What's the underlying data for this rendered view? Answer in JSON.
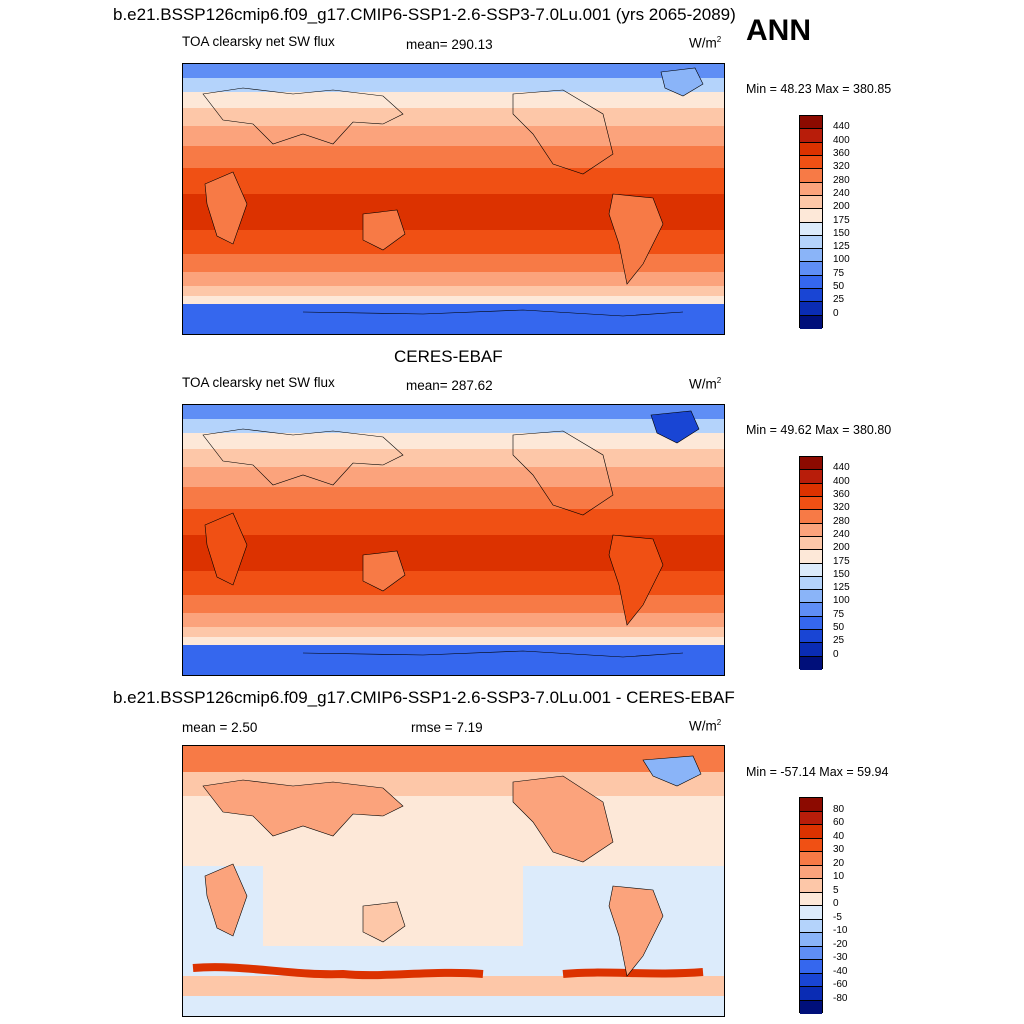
{
  "header": {
    "title": "b.e21.BSSP126cmip6.f09_g17.CMIP6-SSP1-2.6-SSP3-7.0Lu.001 (yrs 2065-2089)",
    "season": "ANN"
  },
  "panels": [
    {
      "id": "model",
      "title": "",
      "left_label": "TOA clearsky net SW flux",
      "center_label": "mean= 290.13",
      "units": "W/m",
      "units_sup": "2",
      "min_max": "Min =  48.23 Max = 380.85"
    },
    {
      "id": "obs",
      "title": "CERES-EBAF",
      "left_label": "TOA clearsky net SW flux",
      "center_label": "mean= 287.62",
      "units": "W/m",
      "units_sup": "2",
      "min_max": "Min =  49.62 Max = 380.80"
    },
    {
      "id": "diff",
      "title": "b.e21.BSSP126cmip6.f09_g17.CMIP6-SSP1-2.6-SSP3-7.0Lu.001 - CERES-EBAF",
      "left_label": "mean =   2.50",
      "center_label": "rmse =   7.19",
      "units": "W/m",
      "units_sup": "2",
      "min_max": "Min = -57.14 Max =  59.94"
    }
  ],
  "colorbars": {
    "flux": {
      "labels": [
        "440",
        "400",
        "360",
        "320",
        "280",
        "240",
        "200",
        "175",
        "150",
        "125",
        "100",
        "75",
        "50",
        "25",
        "0"
      ],
      "colors": [
        "#8c0a00",
        "#b81d0a",
        "#dc3200",
        "#f05014",
        "#f77a46",
        "#fba37c",
        "#fdc7a8",
        "#fde8d8",
        "#dcebfb",
        "#b4d3fb",
        "#8ab4f8",
        "#5f8ef5",
        "#3567ee",
        "#1945d4",
        "#0a2cb4",
        "#000f7a"
      ]
    },
    "diff": {
      "labels": [
        "80",
        "60",
        "40",
        "30",
        "20",
        "10",
        "5",
        "0",
        "-5",
        "-10",
        "-20",
        "-30",
        "-40",
        "-60",
        "-80"
      ],
      "colors": [
        "#8c0a00",
        "#b81d0a",
        "#dc3200",
        "#f05014",
        "#f77a46",
        "#fba37c",
        "#fdc7a8",
        "#fde8d8",
        "#dcebfb",
        "#b4d3fb",
        "#8ab4f8",
        "#5f8ef5",
        "#3567ee",
        "#1945d4",
        "#0a2cb4",
        "#000f7a"
      ]
    }
  }
}
